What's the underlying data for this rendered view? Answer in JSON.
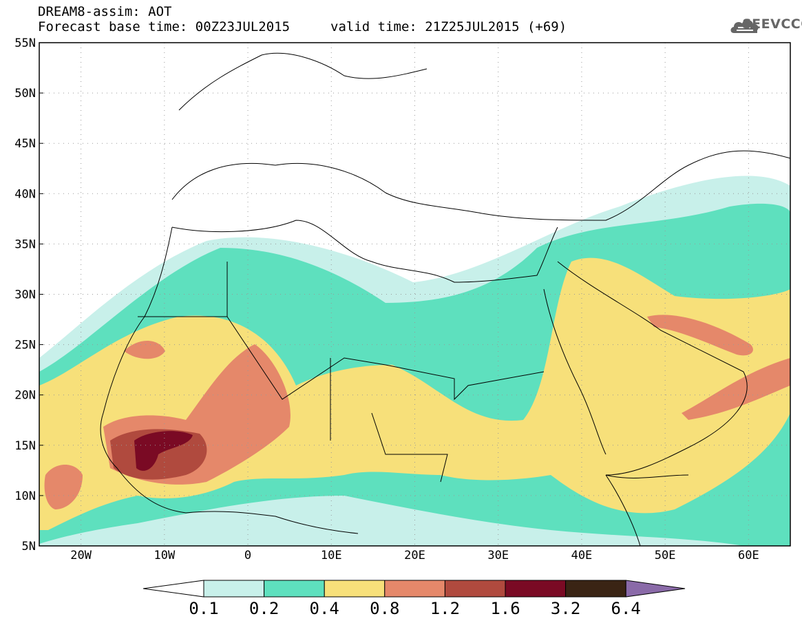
{
  "header": {
    "title": "DREAM8-assim: AOT",
    "base_time": "Forecast base time: 00Z23JUL2015",
    "valid_time": "valid time: 21Z25JUL2015 (+69)"
  },
  "logo": {
    "text": "SEEVCCC",
    "icon": "cloud-icon"
  },
  "map": {
    "lat_labels": [
      "55N",
      "50N",
      "45N",
      "40N",
      "35N",
      "30N",
      "25N",
      "20N",
      "15N",
      "10N",
      "5N"
    ],
    "lon_labels": [
      "20W",
      "10W",
      "0",
      "10E",
      "20E",
      "30E",
      "40E",
      "50E",
      "60E"
    ],
    "lat_range": [
      5,
      55
    ],
    "lon_range": [
      -25,
      65
    ],
    "grid": true
  },
  "colorbar": {
    "levels": [
      "0.1",
      "0.2",
      "0.4",
      "0.8",
      "1.2",
      "1.6",
      "3.2",
      "6.4"
    ],
    "colors": [
      "#ffffff",
      "#c8f0ea",
      "#5ee0be",
      "#f7e07a",
      "#e5886a",
      "#b04a3e",
      "#7a0a24",
      "#3a2414",
      "#8a6aa8"
    ]
  }
}
